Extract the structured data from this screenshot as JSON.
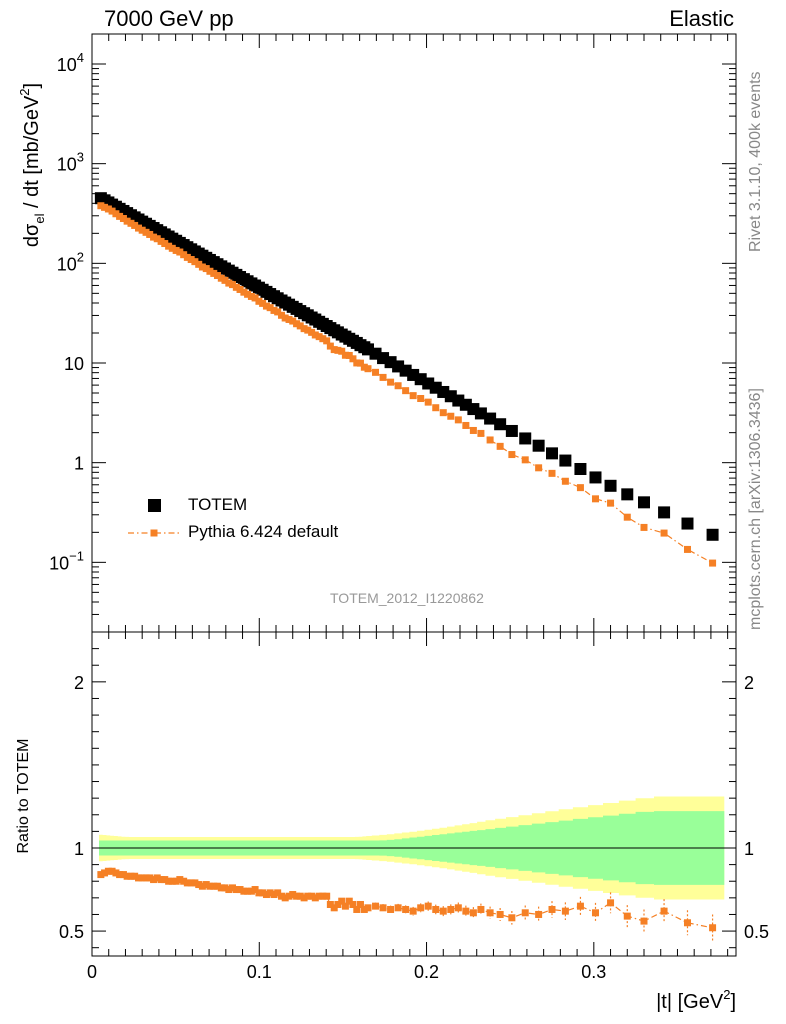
{
  "header": {
    "left": "7000 GeV pp",
    "right": "Elastic"
  },
  "side_labels": {
    "rivet": "Rivet 3.1.10,  400k events",
    "source": "mcplots.cern.ch [arXiv:1306.3436]"
  },
  "colors": {
    "data": "#000000",
    "mc": "#f58025",
    "band_inner": "#99ff99",
    "band_outer": "#ffff99"
  },
  "chart_data": [
    {
      "type": "scatter",
      "title": "",
      "xlabel": "|t| [GeV^2]",
      "ylabel": "dσ_el / dt [mb/GeV^2]",
      "yscale": "log",
      "xlim": [
        0,
        0.385
      ],
      "ylim": [
        0.02,
        20000
      ],
      "y_ticks": [
        "10^-1",
        "1",
        "10",
        "10^2",
        "10^3",
        "10^4"
      ],
      "analysis_label": "TOTEM_2012_I1220862",
      "legend": {
        "placement": "bottom-left",
        "entries": [
          "TOTEM",
          "Pythia 6.424 default"
        ]
      },
      "series": [
        {
          "name": "TOTEM",
          "x": [
            0.0053,
            0.0075,
            0.0098,
            0.012,
            0.0143,
            0.0165,
            0.0188,
            0.021,
            0.0233,
            0.0255,
            0.0278,
            0.03,
            0.0323,
            0.0345,
            0.0368,
            0.039,
            0.0413,
            0.0435,
            0.0458,
            0.048,
            0.0503,
            0.0525,
            0.0548,
            0.057,
            0.0593,
            0.0615,
            0.0638,
            0.066,
            0.0683,
            0.0705,
            0.0728,
            0.075,
            0.0773,
            0.0795,
            0.0818,
            0.084,
            0.0863,
            0.0885,
            0.0908,
            0.093,
            0.0953,
            0.0975,
            0.0998,
            0.102,
            0.1043,
            0.1065,
            0.1088,
            0.111,
            0.1133,
            0.1155,
            0.1178,
            0.12,
            0.1223,
            0.1245,
            0.1268,
            0.129,
            0.1313,
            0.1335,
            0.1358,
            0.138,
            0.1403,
            0.1425,
            0.1448,
            0.147,
            0.1493,
            0.1515,
            0.1538,
            0.156,
            0.1583,
            0.1605,
            0.1628,
            0.165,
            0.1695,
            0.174,
            0.1785,
            0.183,
            0.1875,
            0.192,
            0.1965,
            0.201,
            0.2055,
            0.21,
            0.2145,
            0.219,
            0.2235,
            0.228,
            0.2325,
            0.238,
            0.244,
            0.251,
            0.259,
            0.267,
            0.275,
            0.283,
            0.292,
            0.301,
            0.31,
            0.32,
            0.33,
            0.342,
            0.356,
            0.371
          ],
          "values": [
            450.4,
            428.8,
            408.2,
            388.6,
            369.9,
            352.2,
            335.3,
            319.2,
            303.8,
            289.2,
            275.4,
            262.1,
            249.6,
            237.6,
            226.2,
            215.3,
            205.0,
            195.1,
            185.8,
            176.8,
            168.4,
            160.3,
            152.6,
            145.2,
            138.3,
            131.6,
            125.3,
            119.3,
            113.6,
            108.1,
            102.9,
            98.0,
            93.3,
            88.8,
            84.5,
            80.5,
            76.6,
            72.9,
            69.4,
            66.1,
            62.9,
            59.9,
            57.0,
            54.3,
            51.7,
            49.2,
            46.8,
            44.6,
            42.4,
            40.4,
            38.5,
            36.6,
            34.9,
            33.2,
            31.6,
            30.1,
            28.6,
            27.3,
            25.9,
            24.7,
            23.5,
            22.4,
            21.3,
            20.3,
            19.3,
            18.4,
            17.5,
            16.7,
            15.9,
            15.1,
            14.4,
            13.7,
            12.4,
            11.2,
            10.2,
            9.24,
            8.38,
            7.59,
            6.88,
            6.23,
            5.65,
            5.12,
            4.64,
            4.2,
            3.81,
            3.45,
            3.12,
            2.77,
            2.43,
            2.08,
            1.75,
            1.48,
            1.24,
            1.05,
            0.864,
            0.711,
            0.586,
            0.481,
            0.4,
            0.317,
            0.245,
            0.189
          ],
          "rel_err_inner": [
            0.045,
            0.045,
            0.045,
            0.045,
            0.045,
            0.045,
            0.045,
            0.045,
            0.045,
            0.045,
            0.045,
            0.045,
            0.045,
            0.045,
            0.045,
            0.045,
            0.045,
            0.045,
            0.045,
            0.045,
            0.045,
            0.045,
            0.045,
            0.045,
            0.045,
            0.045,
            0.045,
            0.045,
            0.045,
            0.045,
            0.045,
            0.045,
            0.045,
            0.045,
            0.045,
            0.045,
            0.045,
            0.045,
            0.045,
            0.045,
            0.045,
            0.045,
            0.045,
            0.045,
            0.045,
            0.045,
            0.045,
            0.045,
            0.045,
            0.045,
            0.045,
            0.045,
            0.045,
            0.045,
            0.045,
            0.045,
            0.045,
            0.045,
            0.045,
            0.045,
            0.045,
            0.045,
            0.045,
            0.045,
            0.045,
            0.045,
            0.045,
            0.045,
            0.045,
            0.045,
            0.045,
            0.045,
            0.045,
            0.046,
            0.049,
            0.053,
            0.058,
            0.063,
            0.068,
            0.073,
            0.078,
            0.083,
            0.088,
            0.093,
            0.098,
            0.103,
            0.108,
            0.114,
            0.121,
            0.129,
            0.138,
            0.147,
            0.156,
            0.165,
            0.175,
            0.185,
            0.195,
            0.206,
            0.217,
            0.222,
            0.222,
            0.222
          ],
          "rel_err_outer": [
            0.08,
            0.078,
            0.076,
            0.074,
            0.072,
            0.07,
            0.068,
            0.067,
            0.066,
            0.066,
            0.066,
            0.066,
            0.066,
            0.066,
            0.066,
            0.066,
            0.066,
            0.066,
            0.066,
            0.066,
            0.066,
            0.066,
            0.066,
            0.066,
            0.066,
            0.066,
            0.066,
            0.066,
            0.066,
            0.066,
            0.066,
            0.066,
            0.066,
            0.066,
            0.066,
            0.066,
            0.066,
            0.066,
            0.066,
            0.066,
            0.066,
            0.066,
            0.066,
            0.066,
            0.066,
            0.066,
            0.066,
            0.066,
            0.066,
            0.066,
            0.066,
            0.066,
            0.066,
            0.066,
            0.066,
            0.066,
            0.066,
            0.066,
            0.066,
            0.066,
            0.066,
            0.066,
            0.066,
            0.066,
            0.066,
            0.066,
            0.066,
            0.066,
            0.067,
            0.068,
            0.07,
            0.072,
            0.075,
            0.079,
            0.083,
            0.088,
            0.093,
            0.098,
            0.104,
            0.11,
            0.116,
            0.122,
            0.129,
            0.136,
            0.143,
            0.15,
            0.158,
            0.167,
            0.176,
            0.186,
            0.197,
            0.209,
            0.221,
            0.233,
            0.245,
            0.258,
            0.271,
            0.285,
            0.3,
            0.31,
            0.31,
            0.31
          ]
        },
        {
          "name": "Pythia 6.424 default",
          "ratio": [
            0.84,
            0.85,
            0.86,
            0.86,
            0.85,
            0.84,
            0.84,
            0.83,
            0.83,
            0.83,
            0.82,
            0.82,
            0.82,
            0.82,
            0.81,
            0.82,
            0.81,
            0.81,
            0.8,
            0.8,
            0.8,
            0.81,
            0.8,
            0.79,
            0.79,
            0.79,
            0.78,
            0.77,
            0.78,
            0.77,
            0.77,
            0.77,
            0.76,
            0.76,
            0.75,
            0.76,
            0.75,
            0.75,
            0.74,
            0.74,
            0.74,
            0.75,
            0.73,
            0.73,
            0.72,
            0.73,
            0.72,
            0.73,
            0.71,
            0.7,
            0.71,
            0.72,
            0.71,
            0.71,
            0.7,
            0.71,
            0.71,
            0.7,
            0.71,
            0.71,
            0.71,
            0.66,
            0.64,
            0.66,
            0.68,
            0.65,
            0.68,
            0.66,
            0.63,
            0.66,
            0.63,
            0.64,
            0.65,
            0.64,
            0.63,
            0.64,
            0.63,
            0.62,
            0.64,
            0.65,
            0.63,
            0.62,
            0.63,
            0.64,
            0.62,
            0.61,
            0.63,
            0.61,
            0.6,
            0.58,
            0.61,
            0.6,
            0.63,
            0.62,
            0.65,
            0.61,
            0.67,
            0.59,
            0.56,
            0.62,
            0.55,
            0.52
          ],
          "ratio_err": [
            0.01,
            0.01,
            0.01,
            0.01,
            0.01,
            0.01,
            0.01,
            0.01,
            0.01,
            0.01,
            0.01,
            0.01,
            0.01,
            0.01,
            0.01,
            0.01,
            0.01,
            0.01,
            0.01,
            0.01,
            0.01,
            0.01,
            0.01,
            0.01,
            0.01,
            0.01,
            0.01,
            0.01,
            0.01,
            0.01,
            0.01,
            0.01,
            0.01,
            0.01,
            0.01,
            0.01,
            0.01,
            0.01,
            0.01,
            0.012,
            0.012,
            0.012,
            0.012,
            0.012,
            0.012,
            0.012,
            0.012,
            0.012,
            0.012,
            0.012,
            0.013,
            0.013,
            0.013,
            0.013,
            0.013,
            0.014,
            0.014,
            0.014,
            0.014,
            0.015,
            0.015,
            0.015,
            0.016,
            0.016,
            0.017,
            0.017,
            0.018,
            0.018,
            0.019,
            0.019,
            0.02,
            0.02,
            0.021,
            0.022,
            0.023,
            0.024,
            0.025,
            0.026,
            0.027,
            0.028,
            0.029,
            0.03,
            0.031,
            0.032,
            0.033,
            0.034,
            0.035,
            0.037,
            0.039,
            0.041,
            0.044,
            0.047,
            0.05,
            0.053,
            0.056,
            0.06,
            0.063,
            0.066,
            0.07,
            0.072,
            0.075,
            0.08
          ]
        }
      ]
    },
    {
      "type": "scatter",
      "title": "",
      "xlabel": "|t| [GeV^2]",
      "ylabel": "Ratio to TOTEM",
      "xlim": [
        0,
        0.385
      ],
      "ylim": [
        0.35,
        2.3
      ],
      "y_ticks": [
        "0.5",
        "1",
        "2"
      ],
      "x_ticks": [
        "0",
        "0.1",
        "0.2",
        "0.3"
      ]
    }
  ]
}
